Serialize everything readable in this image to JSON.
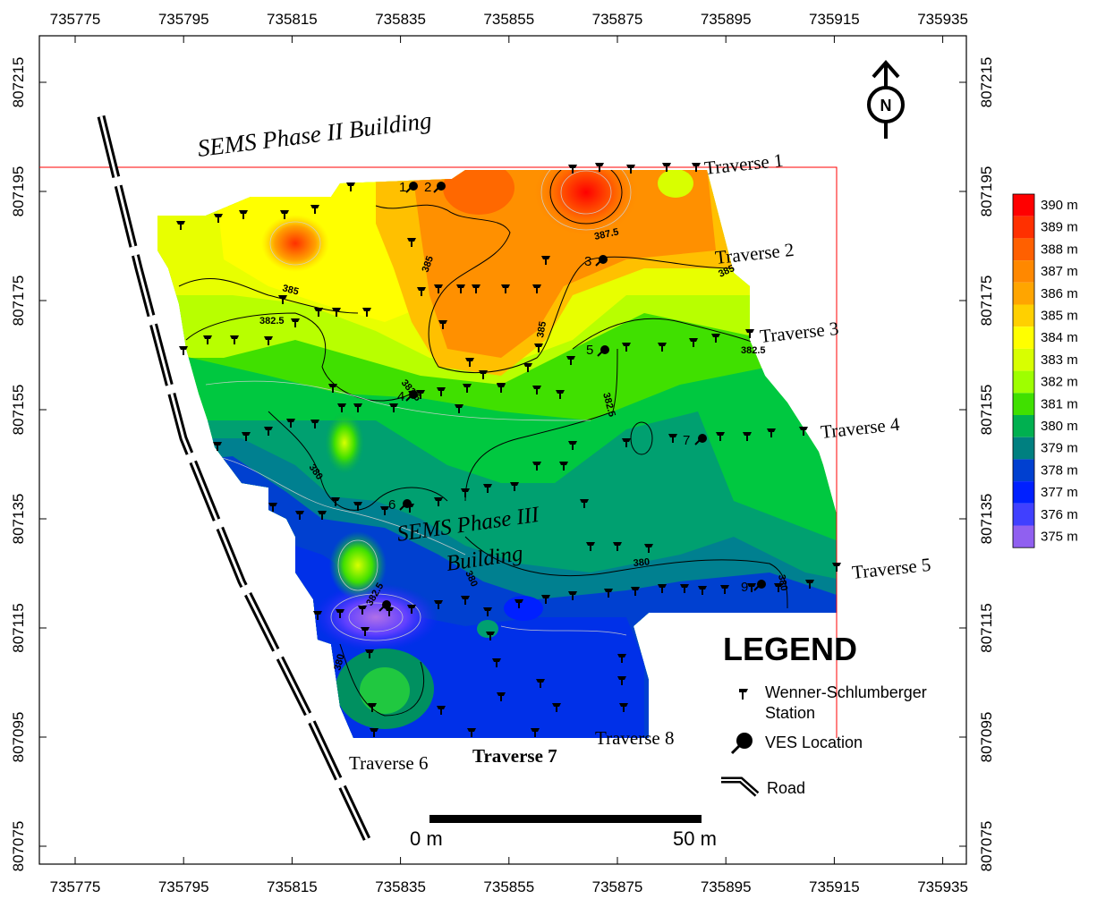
{
  "map": {
    "x_ticks": [
      "735775",
      "735795",
      "735815",
      "735835",
      "735855",
      "735875",
      "735895",
      "735915",
      "735935"
    ],
    "y_ticks": [
      "807215",
      "807195",
      "807175",
      "807155",
      "807135",
      "807115",
      "807095",
      "807075"
    ],
    "building_labels": {
      "phase2": "SEMS Phase II Building",
      "phase3_line1": "SEMS Phase III",
      "phase3_line2": "Building"
    },
    "traverses": [
      "Traverse 1",
      "Traverse 2",
      "Traverse 3",
      "Traverse 4",
      "Traverse 5",
      "Traverse 6",
      "Traverse 7",
      "Traverse 8"
    ],
    "contour_labels": [
      "387.5",
      "385",
      "385",
      "385",
      "382.5",
      "382.5",
      "382.5",
      "382.5",
      "380",
      "380",
      "380",
      "380",
      "380",
      "385",
      "382.5"
    ],
    "ves_numbers": [
      "1",
      "2",
      "3",
      "4",
      "5",
      "6",
      "7",
      "9"
    ],
    "north_label": "N",
    "scale": {
      "start": "0 m",
      "end": "50 m"
    }
  },
  "legend": {
    "title": "LEGEND",
    "station_line1": "Wenner-Schlumberger",
    "station_line2": "Station",
    "ves": "VES Location",
    "road": "Road",
    "station_icon": "station-pin-icon",
    "ves_icon": "ves-marker-icon",
    "road_icon": "road-icon"
  },
  "colorbar": {
    "labels": [
      "390 m",
      "389 m",
      "388 m",
      "387 m",
      "386 m",
      "385 m",
      "384 m",
      "383 m",
      "382 m",
      "381 m",
      "380 m",
      "379 m",
      "378 m",
      "377 m",
      "376 m",
      "375 m"
    ],
    "colors": [
      "#ff0000",
      "#ff3000",
      "#ff6000",
      "#ff8800",
      "#ffa500",
      "#ffd000",
      "#ffff00",
      "#d8ff00",
      "#9eff00",
      "#40e000",
      "#00b050",
      "#008080",
      "#0040d0",
      "#0020ff",
      "#4040ff",
      "#9060f0"
    ]
  }
}
